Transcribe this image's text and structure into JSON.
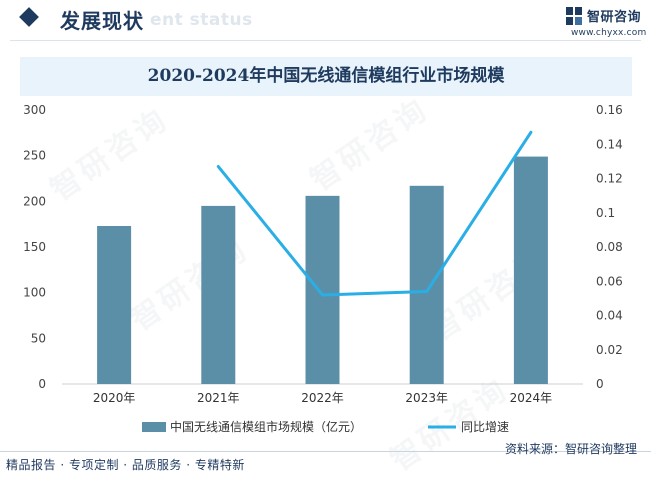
{
  "header": {
    "section_title": "发展现状",
    "section_ghost": "ent status",
    "brand_name": "智研咨询",
    "brand_url": "www.chyxx.com",
    "accent_color": "#1f3a5f"
  },
  "watermark": {
    "text": "智研咨询"
  },
  "chart_data": {
    "type": "bar",
    "title": "2020-2024年中国无线通信模组行业市场规模",
    "categories": [
      "2020年",
      "2021年",
      "2022年",
      "2023年",
      "2024年"
    ],
    "series": [
      {
        "name": "中国无线通信模组市场规模（亿元）",
        "type": "bar",
        "axis": "left",
        "color": "#5b8fa8",
        "values": [
          173,
          195,
          206,
          217,
          249
        ]
      },
      {
        "name": "同比增速",
        "type": "line",
        "axis": "right",
        "color": "#29aee6",
        "values": [
          null,
          0.127,
          0.052,
          0.054,
          0.147
        ]
      }
    ],
    "left_axis": {
      "ylim": [
        0,
        300
      ],
      "ticks": [
        "0",
        "50",
        "100",
        "150",
        "200",
        "250",
        "300"
      ],
      "tick_values": [
        0,
        50,
        100,
        150,
        200,
        250,
        300
      ]
    },
    "right_axis": {
      "ylim": [
        0,
        0.16
      ],
      "ticks": [
        "0",
        "0.02",
        "0.04",
        "0.06",
        "0.08",
        "0.1",
        "0.12",
        "0.14",
        "0.16"
      ],
      "tick_values": [
        0,
        0.02,
        0.04,
        0.06,
        0.08,
        0.1,
        0.12,
        0.14,
        0.16
      ]
    },
    "legend_position": "bottom"
  },
  "footer": {
    "left_text": "精品报告 · 专项定制 · 品质服务 · 专精特新",
    "source_label": "资料来源：",
    "source_value": "智研咨询整理"
  }
}
